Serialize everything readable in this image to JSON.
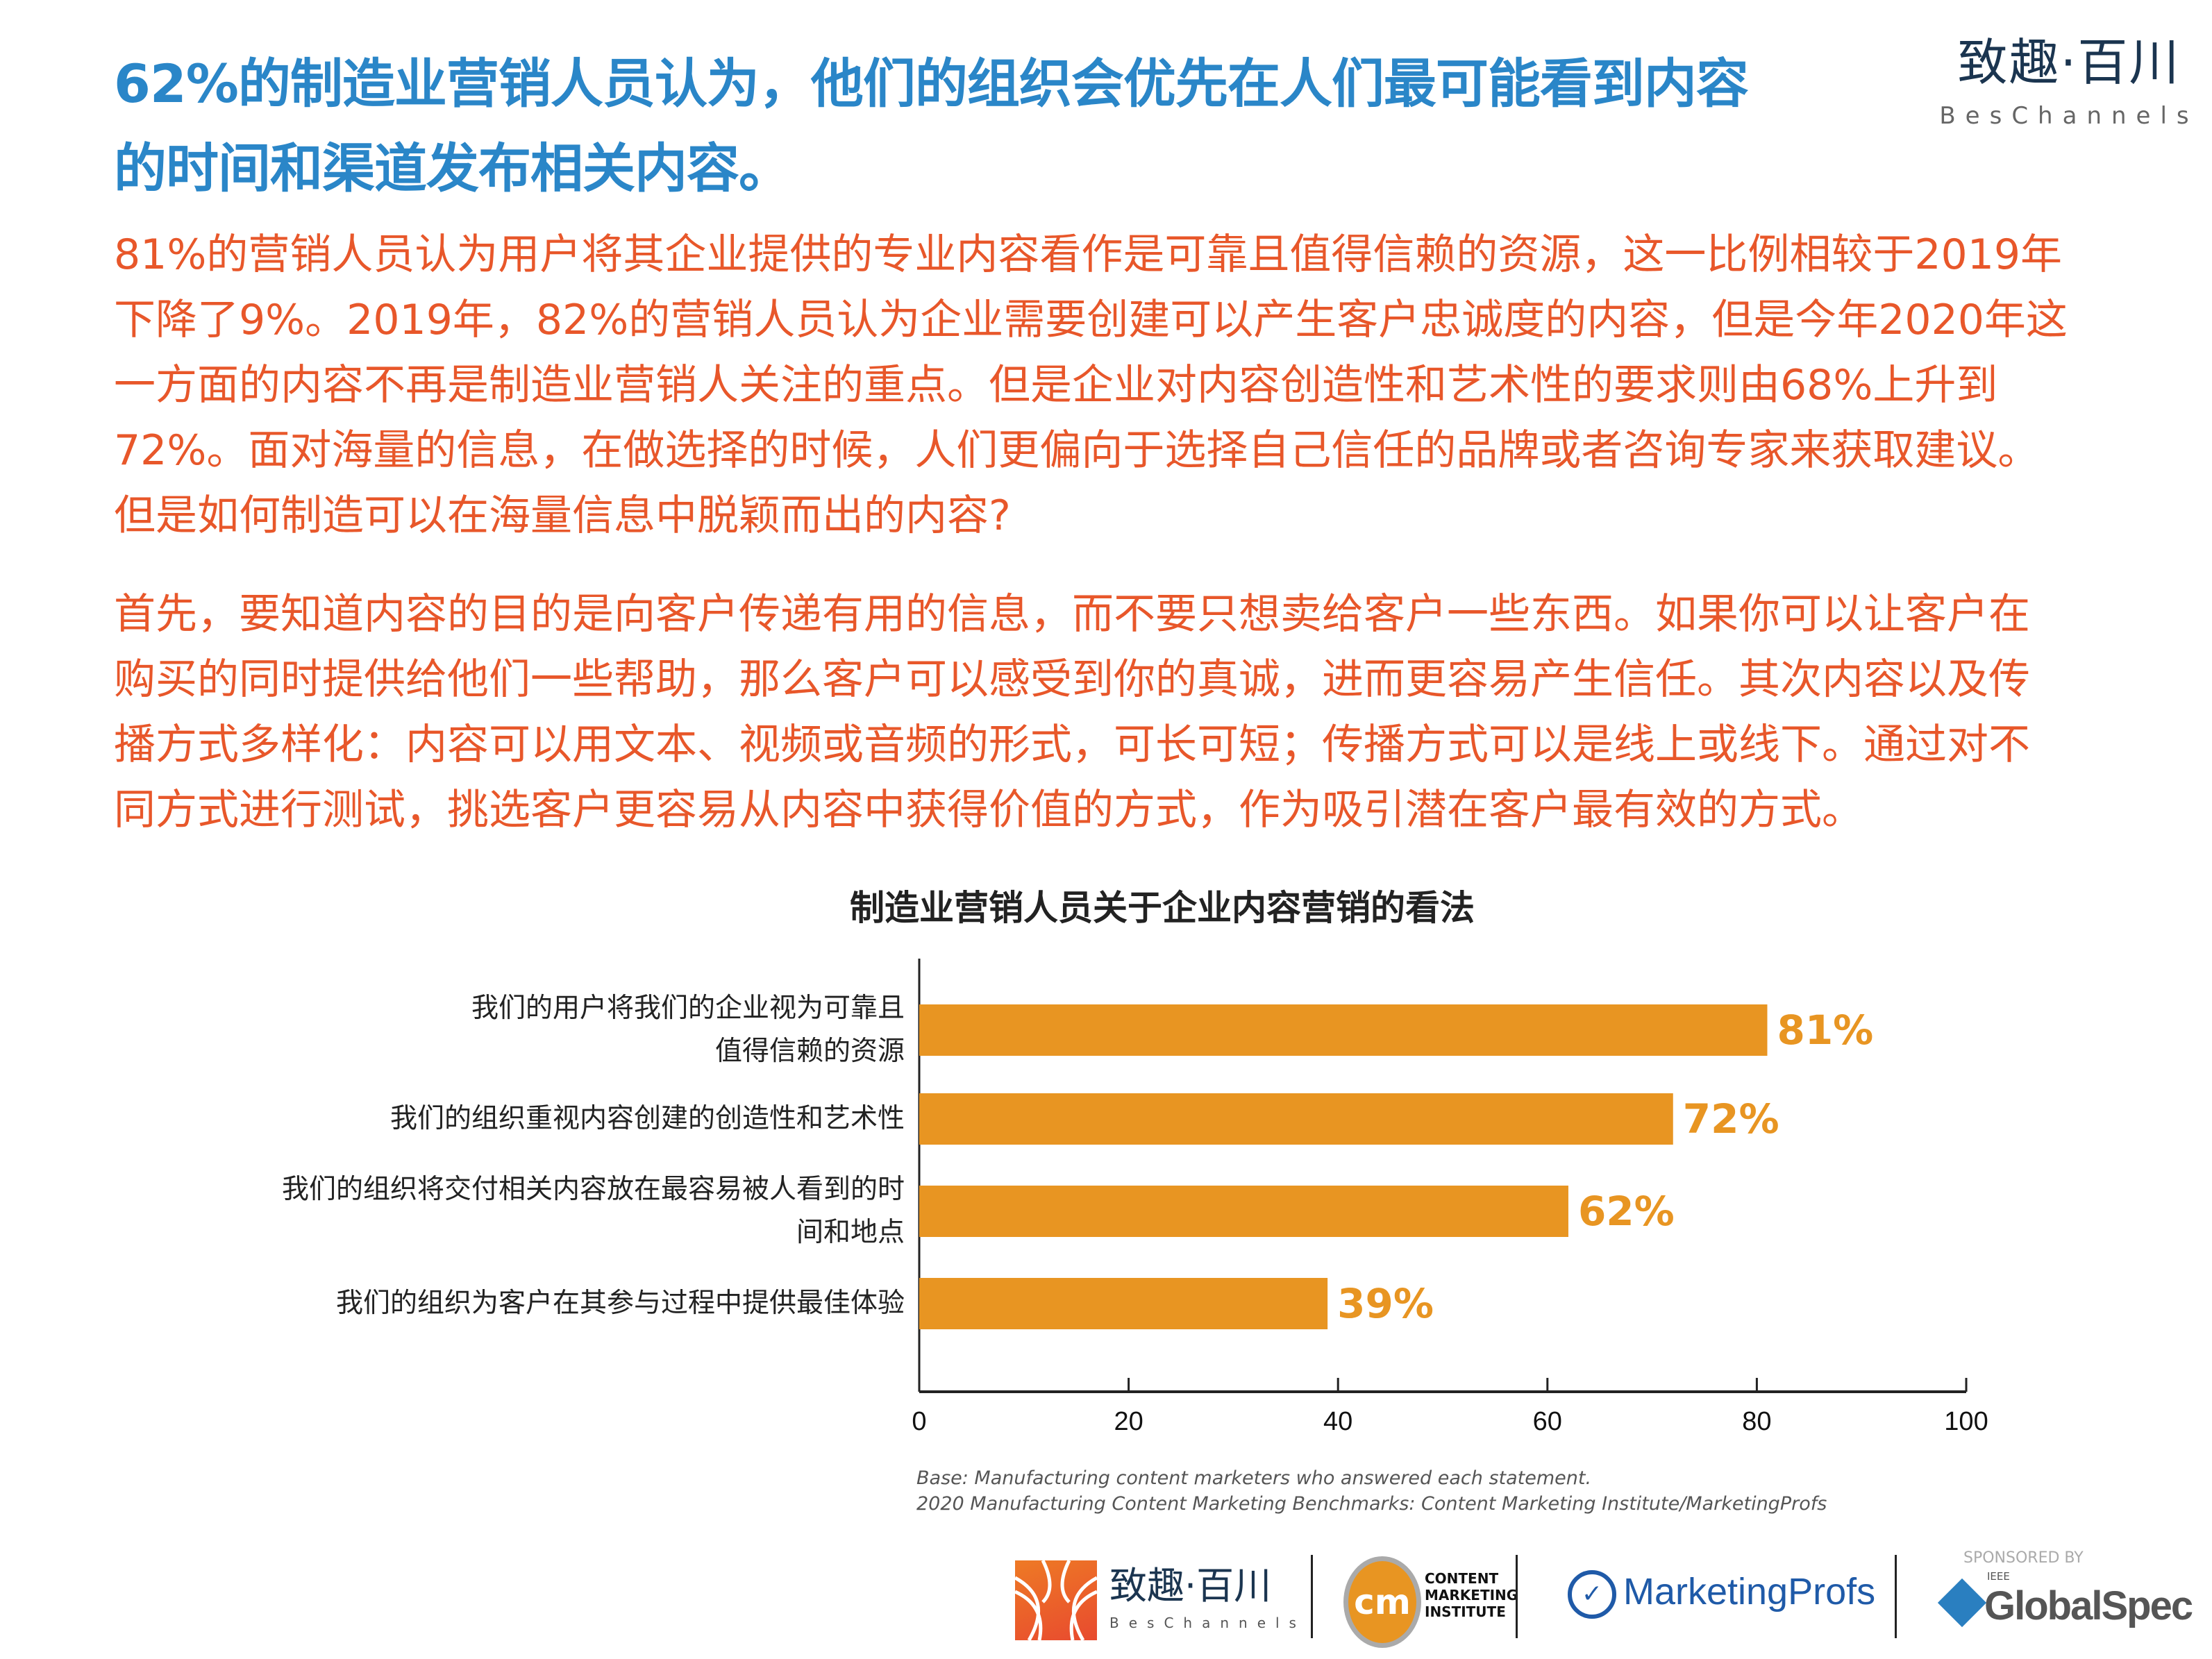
{
  "header": {
    "title_lines": [
      "62%的制造业营销人员认为，他们的组织会优先在人们最可能看到内容",
      "的时间和渠道发布相关内容。"
    ],
    "logo": {
      "cn": "致趣·百川",
      "en": "BesChannels"
    }
  },
  "body": {
    "paragraph1": [
      "81%的营销人员认为用户将其企业提供的专业内容看作是可靠且值得信赖的资源，这一比例相较于2019年",
      "下降了9%。2019年，82%的营销人员认为企业需要创建可以产生客户忠诚度的内容，但是今年2020年这",
      "一方面的内容不再是制造业营销人关注的重点。但是企业对内容创造性和艺术性的要求则由68%上升到",
      "72%。面对海量的信息，在做选择的时候，人们更偏向于选择自己信任的品牌或者咨询专家来获取建议。",
      "但是如何制造可以在海量信息中脱颖而出的内容?"
    ],
    "paragraph2": [
      "首先，要知道内容的目的是向客户传递有用的信息，而不要只想卖给客户一些东西。如果你可以让客户在",
      "购买的同时提供给他们一些帮助，那么客户可以感受到你的真诚，进而更容易产生信任。其次内容以及传",
      "播方式多样化：内容可以用文本、视频或音频的形式，可长可短；传播方式可以是线上或线下。通过对不",
      "同方式进行测试，挑选客户更容易从内容中获得价值的方式，作为吸引潜在客户最有效的方式。"
    ]
  },
  "chart_data": {
    "type": "bar",
    "orientation": "horizontal",
    "title": "制造业营销人员关于企业内容营销的看法",
    "categories": [
      [
        "我们的用户将我们的企业视为可靠且",
        "值得信赖的资源"
      ],
      [
        "我们的组织重视内容创建的创造性和艺术性"
      ],
      [
        "我们的组织将交付相关内容放在最容易被人看到的时",
        "间和地点"
      ],
      [
        "我们的组织为客户在其参与过程中提供最佳体验"
      ]
    ],
    "values": [
      81,
      72,
      62,
      39
    ],
    "data_labels": [
      "81%",
      "72%",
      "62%",
      "39%"
    ],
    "xlim": [
      0,
      100
    ],
    "xticks": [
      "0",
      "20",
      "40",
      "60",
      "80",
      "100"
    ],
    "grid": false,
    "bar_color": "#e89522",
    "xlabel": "",
    "ylabel": ""
  },
  "notes": [
    "Base: Manufacturing content marketers who answered each statement.",
    "2020 Manufacturing Content Marketing Benchmarks: Content Marketing Institute/MarketingProfs"
  ],
  "footer": {
    "beschannels": {
      "cn": "致趣·百川",
      "en": "BesChannels"
    },
    "cmi": {
      "mark": "cm",
      "lines": [
        "CONTENT",
        "MARKETING",
        "INSTITUTE"
      ]
    },
    "marketingprofs": "MarketingProfs",
    "sponsor_label": "SPONSORED BY",
    "globalspec": {
      "small": "IEEE",
      "name": "GlobalSpec"
    }
  }
}
